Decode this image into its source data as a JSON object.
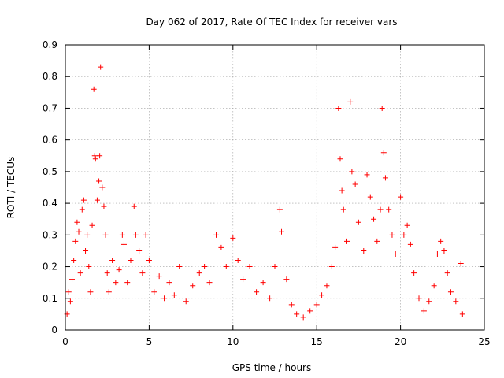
{
  "chart_data": {
    "type": "scatter",
    "title": "Day 062 of 2017, Rate Of TEC Index for receiver vars",
    "xlabel": "GPS time / hours",
    "ylabel": "ROTI / TECUs",
    "xlim": [
      0,
      25
    ],
    "ylim": [
      0,
      0.9
    ],
    "xticks": [
      0,
      5,
      10,
      15,
      20,
      25
    ],
    "xtick_labels": [
      "0",
      "5",
      "10",
      "15",
      "20",
      "25"
    ],
    "yticks": [
      0,
      0.1,
      0.2,
      0.3,
      0.4,
      0.5,
      0.6,
      0.7,
      0.8,
      0.9
    ],
    "ytick_labels": [
      "0",
      "0.1",
      "0.2",
      "0.3",
      "0.4",
      "0.5",
      "0.6",
      "0.7",
      "0.8",
      "0.9"
    ],
    "grid": true,
    "marker": "+",
    "color": "#ff0000",
    "points": [
      [
        0.1,
        0.05
      ],
      [
        0.2,
        0.12
      ],
      [
        0.3,
        0.09
      ],
      [
        0.4,
        0.16
      ],
      [
        0.5,
        0.22
      ],
      [
        0.6,
        0.28
      ],
      [
        0.7,
        0.34
      ],
      [
        0.8,
        0.31
      ],
      [
        0.9,
        0.18
      ],
      [
        1.0,
        0.38
      ],
      [
        1.1,
        0.41
      ],
      [
        1.2,
        0.25
      ],
      [
        1.3,
        0.3
      ],
      [
        1.4,
        0.2
      ],
      [
        1.5,
        0.12
      ],
      [
        1.6,
        0.33
      ],
      [
        1.7,
        0.76
      ],
      [
        1.75,
        0.55
      ],
      [
        1.8,
        0.54
      ],
      [
        1.9,
        0.41
      ],
      [
        2.0,
        0.47
      ],
      [
        2.05,
        0.55
      ],
      [
        2.1,
        0.83
      ],
      [
        2.2,
        0.45
      ],
      [
        2.3,
        0.39
      ],
      [
        2.4,
        0.3
      ],
      [
        2.5,
        0.18
      ],
      [
        2.6,
        0.12
      ],
      [
        2.8,
        0.22
      ],
      [
        3.0,
        0.15
      ],
      [
        3.2,
        0.19
      ],
      [
        3.4,
        0.3
      ],
      [
        3.5,
        0.27
      ],
      [
        3.7,
        0.15
      ],
      [
        3.9,
        0.22
      ],
      [
        4.1,
        0.39
      ],
      [
        4.2,
        0.3
      ],
      [
        4.4,
        0.25
      ],
      [
        4.6,
        0.18
      ],
      [
        4.8,
        0.3
      ],
      [
        5.0,
        0.22
      ],
      [
        5.3,
        0.12
      ],
      [
        5.6,
        0.17
      ],
      [
        5.9,
        0.1
      ],
      [
        6.2,
        0.15
      ],
      [
        6.5,
        0.11
      ],
      [
        6.8,
        0.2
      ],
      [
        7.2,
        0.09
      ],
      [
        7.6,
        0.14
      ],
      [
        8.0,
        0.18
      ],
      [
        8.3,
        0.2
      ],
      [
        8.6,
        0.15
      ],
      [
        9.0,
        0.3
      ],
      [
        9.3,
        0.26
      ],
      [
        9.6,
        0.2
      ],
      [
        10.0,
        0.29
      ],
      [
        10.3,
        0.22
      ],
      [
        10.6,
        0.16
      ],
      [
        11.0,
        0.2
      ],
      [
        11.4,
        0.12
      ],
      [
        11.8,
        0.15
      ],
      [
        12.2,
        0.1
      ],
      [
        12.5,
        0.2
      ],
      [
        12.8,
        0.38
      ],
      [
        12.9,
        0.31
      ],
      [
        13.2,
        0.16
      ],
      [
        13.5,
        0.08
      ],
      [
        13.8,
        0.05
      ],
      [
        14.2,
        0.04
      ],
      [
        14.6,
        0.06
      ],
      [
        15.0,
        0.08
      ],
      [
        15.3,
        0.11
      ],
      [
        15.6,
        0.14
      ],
      [
        15.9,
        0.2
      ],
      [
        16.1,
        0.26
      ],
      [
        16.3,
        0.7
      ],
      [
        16.4,
        0.54
      ],
      [
        16.5,
        0.44
      ],
      [
        16.6,
        0.38
      ],
      [
        16.8,
        0.28
      ],
      [
        17.0,
        0.72
      ],
      [
        17.1,
        0.5
      ],
      [
        17.3,
        0.46
      ],
      [
        17.5,
        0.34
      ],
      [
        17.8,
        0.25
      ],
      [
        18.0,
        0.49
      ],
      [
        18.2,
        0.42
      ],
      [
        18.4,
        0.35
      ],
      [
        18.6,
        0.28
      ],
      [
        18.8,
        0.38
      ],
      [
        18.9,
        0.7
      ],
      [
        19.0,
        0.56
      ],
      [
        19.1,
        0.48
      ],
      [
        19.3,
        0.38
      ],
      [
        19.5,
        0.3
      ],
      [
        19.7,
        0.24
      ],
      [
        20.0,
        0.42
      ],
      [
        20.2,
        0.3
      ],
      [
        20.4,
        0.33
      ],
      [
        20.6,
        0.27
      ],
      [
        20.8,
        0.18
      ],
      [
        21.1,
        0.1
      ],
      [
        21.4,
        0.06
      ],
      [
        21.7,
        0.09
      ],
      [
        22.0,
        0.14
      ],
      [
        22.2,
        0.24
      ],
      [
        22.4,
        0.28
      ],
      [
        22.6,
        0.25
      ],
      [
        22.8,
        0.18
      ],
      [
        23.0,
        0.12
      ],
      [
        23.3,
        0.09
      ],
      [
        23.6,
        0.21
      ],
      [
        23.7,
        0.05
      ]
    ]
  }
}
